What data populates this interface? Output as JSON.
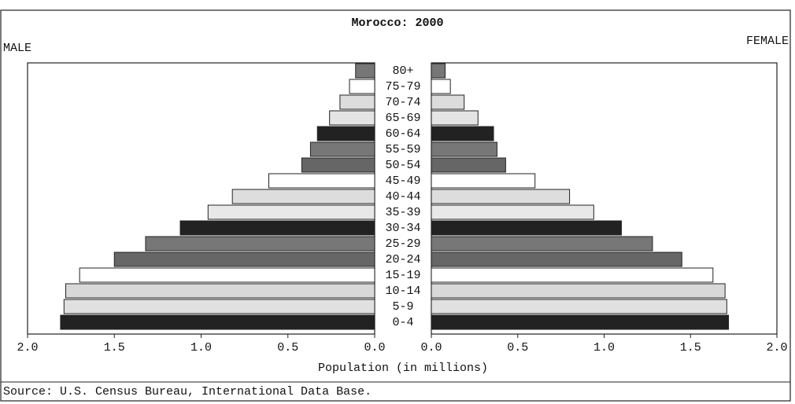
{
  "chart_data": {
    "type": "pyramid",
    "title": "Morocco: 2000",
    "categories": [
      "0-4",
      "5-9",
      "10-14",
      "15-19",
      "20-24",
      "25-29",
      "30-34",
      "35-39",
      "40-44",
      "45-49",
      "50-54",
      "55-59",
      "60-64",
      "65-69",
      "70-74",
      "75-79",
      "80+"
    ],
    "colors": [
      "#222222",
      "#e0e0e0",
      "#d8d8d8",
      "#ffffff",
      "#666666",
      "#777777",
      "#222222",
      "#e8e8e8",
      "#dddddd",
      "#ffffff",
      "#666666",
      "#777777",
      "#222222",
      "#e4e4e4",
      "#dcdcdc",
      "#ffffff",
      "#777777"
    ],
    "series": [
      {
        "name": "MALE",
        "values": [
          1.81,
          1.79,
          1.78,
          1.7,
          1.5,
          1.32,
          1.12,
          0.96,
          0.82,
          0.61,
          0.42,
          0.37,
          0.33,
          0.26,
          0.2,
          0.145,
          0.11
        ]
      },
      {
        "name": "FEMALE",
        "values": [
          1.72,
          1.71,
          1.7,
          1.63,
          1.45,
          1.28,
          1.1,
          0.94,
          0.8,
          0.6,
          0.43,
          0.38,
          0.36,
          0.27,
          0.19,
          0.11,
          0.08
        ]
      }
    ],
    "xlim": [
      0,
      2
    ],
    "xticks": [
      {
        "value": 0,
        "label": "0.0"
      },
      {
        "value": 0.5,
        "label": "0.5"
      },
      {
        "value": 1,
        "label": "1.0"
      },
      {
        "value": 1.5,
        "label": "1.5"
      },
      {
        "value": 2,
        "label": "2.0"
      }
    ],
    "xlabel": "Population (in millions)",
    "source": "Source: U.S. Census Bureau, International Data Base."
  }
}
